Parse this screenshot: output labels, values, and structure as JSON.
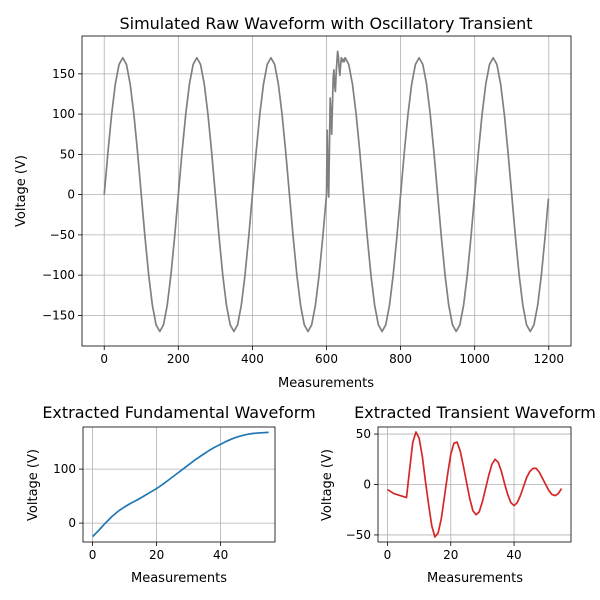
{
  "chart_data": [
    {
      "type": "line",
      "title": "Simulated Raw Waveform with Oscillatory Transient",
      "xlabel": "Measurements",
      "ylabel": "Voltage (V)",
      "xlim": [
        -60,
        1260
      ],
      "ylim": [
        -188,
        197
      ],
      "xticks": [
        0,
        200,
        400,
        600,
        800,
        1000,
        1200
      ],
      "yticks": [
        -150,
        -100,
        -50,
        0,
        50,
        100,
        150
      ],
      "grid": true,
      "series": [
        {
          "color": "#808080",
          "x": [
            0,
            10,
            20,
            30,
            40,
            50,
            60,
            70,
            80,
            90,
            100,
            110,
            120,
            130,
            140,
            150,
            160,
            170,
            180,
            190,
            200,
            210,
            220,
            230,
            240,
            250,
            260,
            270,
            280,
            290,
            300,
            310,
            320,
            330,
            340,
            350,
            360,
            370,
            380,
            390,
            400,
            410,
            420,
            430,
            440,
            450,
            460,
            470,
            480,
            490,
            500,
            510,
            520,
            530,
            540,
            550,
            560,
            570,
            580,
            590,
            600,
            602,
            604,
            606,
            608,
            610,
            612,
            614,
            616,
            618,
            620,
            622,
            624,
            626,
            628,
            630,
            632,
            634,
            636,
            638,
            640,
            642,
            644,
            646,
            648,
            650,
            652,
            654,
            660,
            670,
            680,
            690,
            700,
            710,
            720,
            730,
            740,
            750,
            760,
            770,
            780,
            790,
            800,
            810,
            820,
            830,
            840,
            850,
            860,
            870,
            880,
            890,
            900,
            910,
            920,
            930,
            940,
            950,
            960,
            970,
            980,
            990,
            1000,
            1010,
            1020,
            1030,
            1040,
            1050,
            1060,
            1070,
            1080,
            1090,
            1100,
            1110,
            1120,
            1130,
            1140,
            1150,
            1160,
            1170,
            1180,
            1190,
            1199
          ],
          "y": [
            0,
            52.5,
            99.9,
            137.5,
            161.7,
            170,
            161.7,
            137.5,
            99.9,
            52.5,
            0,
            -52.5,
            -99.9,
            -137.5,
            -161.7,
            -170,
            -161.7,
            -137.5,
            -99.9,
            -52.5,
            0,
            52.5,
            99.9,
            137.5,
            161.7,
            170,
            161.7,
            137.5,
            99.9,
            52.5,
            0,
            -52.5,
            -99.9,
            -137.5,
            -161.7,
            -170,
            -161.7,
            -137.5,
            -99.9,
            -52.5,
            0,
            52.5,
            99.9,
            137.5,
            161.7,
            170,
            161.7,
            137.5,
            99.9,
            52.5,
            0,
            -52.5,
            -99.9,
            -137.5,
            -161.7,
            -170,
            -161.7,
            -137.5,
            -99.9,
            -52.5,
            0,
            80,
            20,
            -3,
            60,
            120,
            100,
            75,
            110,
            145,
            155,
            135,
            128,
            150,
            165,
            178,
            172,
            158,
            148,
            160,
            170,
            168,
            165,
            168,
            165,
            170,
            169,
            167,
            161.7,
            137.5,
            99.9,
            52.5,
            0,
            -52.5,
            -99.9,
            -137.5,
            -161.7,
            -170,
            -161.7,
            -137.5,
            -99.9,
            -52.5,
            0,
            52.5,
            99.9,
            137.5,
            161.7,
            170,
            161.7,
            137.5,
            99.9,
            52.5,
            0,
            -52.5,
            -99.9,
            -137.5,
            -161.7,
            -170,
            -161.7,
            -137.5,
            -99.9,
            -52.5,
            0,
            52.5,
            99.9,
            137.5,
            161.7,
            170,
            161.7,
            137.5,
            99.9,
            52.5,
            0,
            -52.5,
            -99.9,
            -137.5,
            -161.7,
            -170,
            -161.7,
            -137.5,
            -99.9,
            -52.5,
            -5
          ]
        }
      ]
    },
    {
      "type": "line",
      "title": "Extracted Fundamental Waveform",
      "xlabel": "Measurements",
      "ylabel": "Voltage (V)",
      "xlim": [
        -3,
        57
      ],
      "ylim": [
        -35,
        178
      ],
      "xticks": [
        0,
        20,
        40
      ],
      "yticks": [
        0,
        100
      ],
      "grid": true,
      "series": [
        {
          "color": "#1f77b4",
          "x": [
            0,
            2,
            4,
            6,
            8,
            10,
            12,
            14,
            16,
            18,
            20,
            22,
            24,
            26,
            28,
            30,
            32,
            34,
            36,
            38,
            40,
            42,
            44,
            46,
            48,
            50,
            52,
            55
          ],
          "y": [
            -25,
            -13,
            0,
            12,
            22,
            30,
            37,
            43,
            50,
            57,
            64,
            72,
            81,
            90,
            99,
            108,
            117,
            125,
            133,
            140,
            146,
            152,
            157,
            161,
            164,
            166,
            167,
            168
          ]
        }
      ]
    },
    {
      "type": "line",
      "title": "Extracted Transient Waveform",
      "xlabel": "Measurements",
      "ylabel": "Voltage (V)",
      "xlim": [
        -3,
        58
      ],
      "ylim": [
        -57,
        57
      ],
      "xticks": [
        0,
        20,
        40
      ],
      "yticks": [
        -50,
        0,
        50
      ],
      "grid": true,
      "series": [
        {
          "color": "#d62728",
          "x": [
            0,
            1,
            2,
            3,
            4,
            5,
            6,
            7,
            8,
            9,
            10,
            11,
            12,
            13,
            14,
            15,
            16,
            17,
            18,
            19,
            20,
            21,
            22,
            23,
            24,
            25,
            26,
            27,
            28,
            29,
            30,
            31,
            32,
            33,
            34,
            35,
            36,
            37,
            38,
            39,
            40,
            41,
            42,
            43,
            44,
            45,
            46,
            47,
            48,
            49,
            50,
            51,
            52,
            53,
            54,
            55
          ],
          "y": [
            -5,
            -7,
            -9,
            -10,
            -11,
            -12,
            -13,
            15,
            42,
            52,
            46,
            28,
            3,
            -20,
            -41,
            -52,
            -48,
            -34,
            -12,
            10,
            30,
            41,
            42,
            33,
            18,
            2,
            -14,
            -26,
            -30,
            -27,
            -17,
            -4,
            9,
            20,
            25,
            22,
            13,
            1,
            -10,
            -18,
            -21,
            -18,
            -11,
            -2,
            7,
            13,
            16,
            16,
            12,
            6,
            0,
            -6,
            -10,
            -11,
            -9,
            -4
          ]
        }
      ]
    }
  ]
}
